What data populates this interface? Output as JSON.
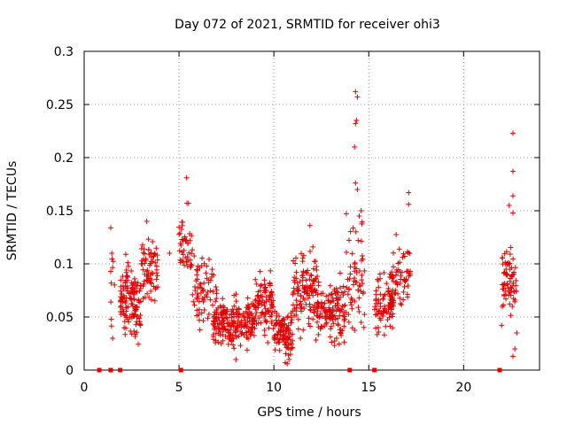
{
  "chart_data": {
    "type": "scatter",
    "title": "Day 072 of 2021, SRMTID for receiver ohi3",
    "xlabel": "GPS time / hours",
    "ylabel": "SRMTID / TECUs",
    "xlim": [
      0,
      24
    ],
    "ylim": [
      0,
      0.3
    ],
    "xticks": [
      0,
      5,
      10,
      15,
      20
    ],
    "xtick_labels": [
      "0",
      "5",
      "10",
      "15",
      "20"
    ],
    "yticks": [
      0,
      0.05,
      0.1,
      0.15,
      0.2,
      0.25,
      0.3
    ],
    "ytick_labels": [
      "0",
      "0.05",
      "0.1",
      "0.15",
      "0.2",
      "0.25",
      "0.3"
    ],
    "grid": true,
    "marker": "+",
    "series": [
      {
        "name": "SRMTID",
        "color": "#e00000",
        "clusters": [
          {
            "x_range": [
              1.4,
              1.6
            ],
            "y_mean": 0.08,
            "y_spread": 0.03,
            "n": 10
          },
          {
            "x_range": [
              1.9,
              3.0
            ],
            "y_mean": 0.065,
            "y_spread": 0.022,
            "n": 130
          },
          {
            "x_range": [
              3.0,
              3.9
            ],
            "y_mean": 0.095,
            "y_spread": 0.02,
            "n": 70
          },
          {
            "x_range": [
              5.0,
              5.7
            ],
            "y_mean": 0.115,
            "y_spread": 0.022,
            "n": 45
          },
          {
            "x_range": [
              5.7,
              7.0
            ],
            "y_mean": 0.075,
            "y_spread": 0.025,
            "n": 70
          },
          {
            "x_range": [
              6.8,
              9.0
            ],
            "y_mean": 0.045,
            "y_spread": 0.015,
            "n": 220
          },
          {
            "x_range": [
              9.0,
              10.0
            ],
            "y_mean": 0.065,
            "y_spread": 0.02,
            "n": 90
          },
          {
            "x_range": [
              10.0,
              11.0
            ],
            "y_mean": 0.035,
            "y_spread": 0.015,
            "n": 100
          },
          {
            "x_range": [
              11.0,
              12.3
            ],
            "y_mean": 0.075,
            "y_spread": 0.022,
            "n": 120
          },
          {
            "x_range": [
              12.3,
              13.8
            ],
            "y_mean": 0.055,
            "y_spread": 0.018,
            "n": 130
          },
          {
            "x_range": [
              13.8,
              14.8
            ],
            "y_mean": 0.085,
            "y_spread": 0.035,
            "n": 60
          },
          {
            "x_range": [
              15.3,
              16.3
            ],
            "y_mean": 0.065,
            "y_spread": 0.02,
            "n": 90
          },
          {
            "x_range": [
              16.2,
              17.2
            ],
            "y_mean": 0.09,
            "y_spread": 0.02,
            "n": 60
          },
          {
            "x_range": [
              22.0,
              22.8
            ],
            "y_mean": 0.085,
            "y_spread": 0.022,
            "n": 70
          }
        ],
        "spikes": [
          [
            1.4,
            0.134
          ],
          [
            5.4,
            0.181
          ],
          [
            5.5,
            0.157
          ],
          [
            14.3,
            0.262
          ],
          [
            14.4,
            0.257
          ],
          [
            14.35,
            0.235
          ],
          [
            14.3,
            0.232
          ],
          [
            14.25,
            0.21
          ],
          [
            14.3,
            0.176
          ],
          [
            14.4,
            0.17
          ],
          [
            14.5,
            0.145
          ],
          [
            14.6,
            0.15
          ],
          [
            17.1,
            0.167
          ],
          [
            17.1,
            0.156
          ],
          [
            22.6,
            0.223
          ],
          [
            22.6,
            0.187
          ],
          [
            22.6,
            0.164
          ],
          [
            22.4,
            0.155
          ],
          [
            22.6,
            0.148
          ],
          [
            3.3,
            0.14
          ],
          [
            4.5,
            0.11
          ],
          [
            11.9,
            0.136
          ],
          [
            10.6,
            0.007
          ],
          [
            10.7,
            0.006
          ],
          [
            8.0,
            0.01
          ],
          [
            22.8,
            0.035
          ],
          [
            22.7,
            0.02
          ],
          [
            22.6,
            0.013
          ],
          [
            22.0,
            0.042
          ],
          [
            1.5,
            0.03
          ],
          [
            14.6,
            0.045
          ],
          [
            13.3,
            0.03
          ],
          [
            11.4,
            0.03
          ],
          [
            15.5,
            0.04
          ]
        ]
      }
    ],
    "baseline_markers": {
      "y": 0,
      "x": [
        0.8,
        1.4,
        1.9,
        5.1,
        14.0,
        15.3,
        21.9
      ]
    }
  }
}
